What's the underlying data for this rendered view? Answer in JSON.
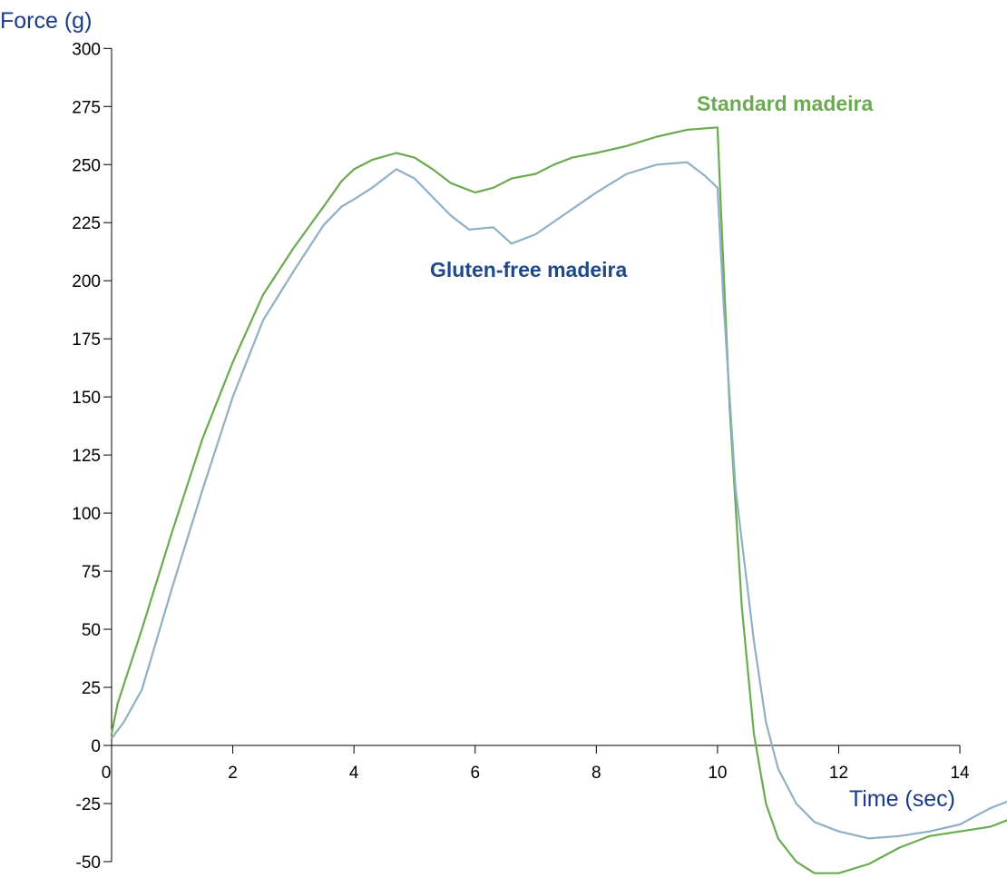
{
  "chart_data": {
    "type": "line",
    "title": "",
    "xlabel": "Time (sec)",
    "ylabel": "Force (g)",
    "xlim": [
      0,
      14
    ],
    "ylim": [
      -50,
      300
    ],
    "x_ticks": [
      0,
      2,
      4,
      6,
      8,
      10,
      12,
      14
    ],
    "y_ticks": [
      -50,
      -25,
      0,
      25,
      50,
      75,
      100,
      125,
      150,
      175,
      200,
      225,
      250,
      275,
      300
    ],
    "grid": false,
    "legend": "labels placed next to series",
    "axis_color": "#1a3a8c",
    "series": [
      {
        "name": "Standard madeira",
        "color": "#6aab4f",
        "label_color": "#6aab4f",
        "points": [
          [
            0,
            5
          ],
          [
            0.1,
            18
          ],
          [
            0.5,
            50
          ],
          [
            1.0,
            92
          ],
          [
            1.5,
            132
          ],
          [
            2.0,
            165
          ],
          [
            2.5,
            194
          ],
          [
            3.0,
            214
          ],
          [
            3.5,
            232
          ],
          [
            3.8,
            243
          ],
          [
            4.0,
            248
          ],
          [
            4.3,
            252
          ],
          [
            4.7,
            255
          ],
          [
            5.0,
            253
          ],
          [
            5.3,
            248
          ],
          [
            5.6,
            242
          ],
          [
            6.0,
            238
          ],
          [
            6.3,
            240
          ],
          [
            6.6,
            244
          ],
          [
            7.0,
            246
          ],
          [
            7.3,
            250
          ],
          [
            7.6,
            253
          ],
          [
            8.0,
            255
          ],
          [
            8.5,
            258
          ],
          [
            9.0,
            262
          ],
          [
            9.5,
            265
          ],
          [
            10.0,
            266
          ],
          [
            10.05,
            235
          ],
          [
            10.2,
            145
          ],
          [
            10.4,
            60
          ],
          [
            10.6,
            5
          ],
          [
            10.8,
            -25
          ],
          [
            11.0,
            -40
          ],
          [
            11.3,
            -50
          ],
          [
            11.6,
            -55
          ],
          [
            12.0,
            -55
          ],
          [
            12.5,
            -51
          ],
          [
            13.0,
            -44
          ],
          [
            13.5,
            -39
          ],
          [
            14.0,
            -37
          ],
          [
            14.5,
            -35
          ],
          [
            14.8,
            -32
          ]
        ]
      },
      {
        "name": "Gluten-free madeira",
        "color": "#8fb0c4",
        "label_color": "#1d4a8c",
        "points": [
          [
            0,
            3
          ],
          [
            0.2,
            10
          ],
          [
            0.5,
            24
          ],
          [
            1.0,
            68
          ],
          [
            1.5,
            110
          ],
          [
            2.0,
            150
          ],
          [
            2.5,
            183
          ],
          [
            3.0,
            204
          ],
          [
            3.5,
            224
          ],
          [
            3.8,
            232
          ],
          [
            4.0,
            235
          ],
          [
            4.3,
            240
          ],
          [
            4.7,
            248
          ],
          [
            5.0,
            244
          ],
          [
            5.3,
            236
          ],
          [
            5.6,
            228
          ],
          [
            5.9,
            222
          ],
          [
            6.3,
            223
          ],
          [
            6.6,
            216
          ],
          [
            7.0,
            220
          ],
          [
            7.5,
            229
          ],
          [
            8.0,
            238
          ],
          [
            8.5,
            246
          ],
          [
            9.0,
            250
          ],
          [
            9.5,
            251
          ],
          [
            9.8,
            245
          ],
          [
            10.0,
            240
          ],
          [
            10.1,
            190
          ],
          [
            10.3,
            110
          ],
          [
            10.6,
            45
          ],
          [
            10.8,
            10
          ],
          [
            11.0,
            -10
          ],
          [
            11.3,
            -25
          ],
          [
            11.6,
            -33
          ],
          [
            12.0,
            -37
          ],
          [
            12.5,
            -40
          ],
          [
            13.0,
            -39
          ],
          [
            13.5,
            -37
          ],
          [
            14.0,
            -34
          ],
          [
            14.5,
            -27
          ],
          [
            14.8,
            -24
          ]
        ]
      }
    ]
  }
}
